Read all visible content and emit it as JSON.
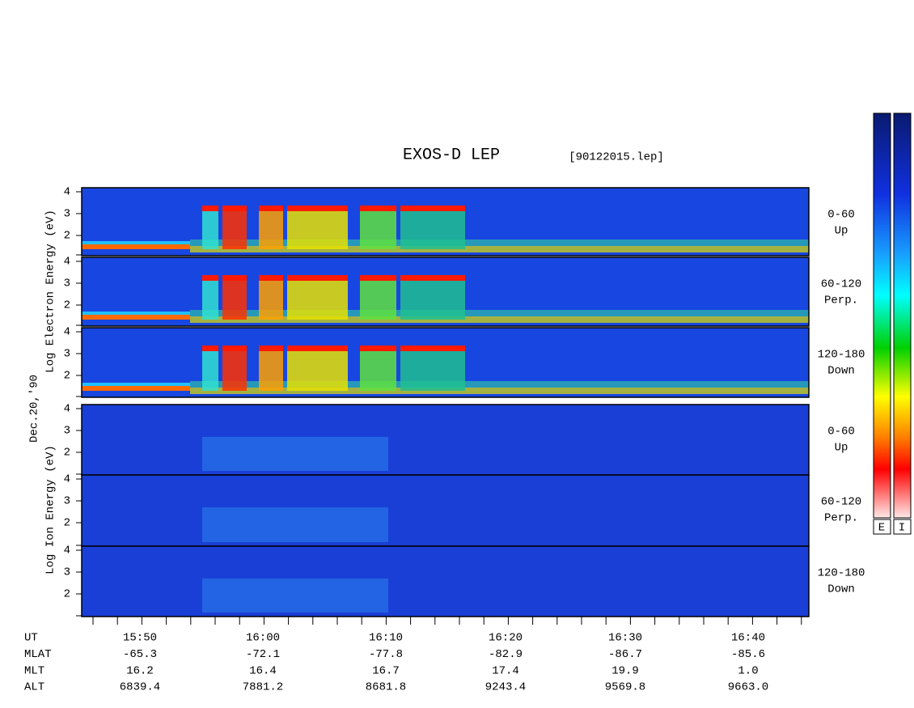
{
  "title": "EXOS-D LEP",
  "file": "[90122015.lep]",
  "date_label": "Dec.20,'90",
  "y_ticks": [
    "4",
    "3",
    "2"
  ],
  "electron": {
    "y_label": "Log  Electron  Energy (eV)",
    "panels": [
      {
        "label": "0-60",
        "sub": "Up"
      },
      {
        "label": "60-120",
        "sub": "Perp."
      },
      {
        "label": "120-180",
        "sub": "Down"
      }
    ]
  },
  "ion": {
    "y_label": "Log  Ion  Energy (eV)",
    "panels": [
      {
        "label": "0-60",
        "sub": "Up"
      },
      {
        "label": "60-120",
        "sub": "Perp."
      },
      {
        "label": "120-180",
        "sub": "Down"
      }
    ]
  },
  "colorbars": [
    "E",
    "I"
  ],
  "time_axis": {
    "rows": [
      {
        "name": "UT",
        "values": [
          "15:50",
          "16:00",
          "16:10",
          "16:20",
          "16:30",
          "16:40"
        ]
      },
      {
        "name": "MLAT",
        "values": [
          "-65.3",
          "-72.1",
          "-77.8",
          "-82.9",
          "-86.7",
          "-85.6"
        ]
      },
      {
        "name": "MLT",
        "values": [
          "16.2",
          "16.4",
          "16.7",
          "17.4",
          "19.9",
          "1.0"
        ]
      },
      {
        "name": "ALT",
        "values": [
          "6839.4",
          "7881.2",
          "8681.8",
          "9243.4",
          "9569.8",
          "9663.0"
        ]
      }
    ]
  }
}
